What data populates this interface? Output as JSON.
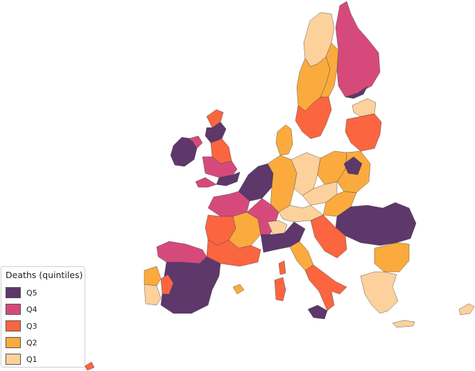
{
  "colors": {
    "Q5": "#5e376b",
    "Q4": "#d64a7b",
    "Q3": "#fb6540",
    "Q2": "#fbab3d",
    "Q1": "#fdd19c"
  },
  "legend": {
    "title": "Deaths (quintiles)",
    "items": [
      {
        "key": "Q5",
        "label": "Q5"
      },
      {
        "key": "Q4",
        "label": "Q4"
      },
      {
        "key": "Q3",
        "label": "Q3"
      },
      {
        "key": "Q2",
        "label": "Q2"
      },
      {
        "key": "Q1",
        "label": "Q1"
      }
    ]
  },
  "regions": [
    {
      "id": "norway-north",
      "q": "Q1"
    },
    {
      "id": "norway-south",
      "q": "Q2"
    },
    {
      "id": "sweden-north",
      "q": "Q2"
    },
    {
      "id": "sweden-south",
      "q": "Q3"
    },
    {
      "id": "finland",
      "q": "Q4"
    },
    {
      "id": "finland-south",
      "q": "Q5"
    },
    {
      "id": "estonia",
      "q": "Q1"
    },
    {
      "id": "latvia-lithuania",
      "q": "Q3"
    },
    {
      "id": "denmark",
      "q": "Q2"
    },
    {
      "id": "ireland",
      "q": "Q5"
    },
    {
      "id": "northern-ireland",
      "q": "Q4"
    },
    {
      "id": "scotland-north",
      "q": "Q3"
    },
    {
      "id": "scotland",
      "q": "Q5"
    },
    {
      "id": "england-north",
      "q": "Q3"
    },
    {
      "id": "england-mid",
      "q": "Q4"
    },
    {
      "id": "england-south",
      "q": "Q5"
    },
    {
      "id": "wales-sw",
      "q": "Q4"
    },
    {
      "id": "benelux",
      "q": "Q5"
    },
    {
      "id": "germany-west",
      "q": "Q2"
    },
    {
      "id": "germany-east",
      "q": "Q1"
    },
    {
      "id": "poland-west",
      "q": "Q2"
    },
    {
      "id": "poland-east",
      "q": "Q2"
    },
    {
      "id": "poland-southeast",
      "q": "Q5"
    },
    {
      "id": "czechia",
      "q": "Q1"
    },
    {
      "id": "slovakia-hungary",
      "q": "Q2"
    },
    {
      "id": "austria",
      "q": "Q1"
    },
    {
      "id": "romania",
      "q": "Q5"
    },
    {
      "id": "bulgaria",
      "q": "Q2"
    },
    {
      "id": "greece",
      "q": "Q1"
    },
    {
      "id": "croatia",
      "q": "Q3"
    },
    {
      "id": "france-north",
      "q": "Q4"
    },
    {
      "id": "france-west",
      "q": "Q3"
    },
    {
      "id": "france-center",
      "q": "Q2"
    },
    {
      "id": "france-east",
      "q": "Q4"
    },
    {
      "id": "france-south",
      "q": "Q3"
    },
    {
      "id": "switzerland",
      "q": "Q1"
    },
    {
      "id": "italy-north",
      "q": "Q5"
    },
    {
      "id": "italy-center",
      "q": "Q2"
    },
    {
      "id": "italy-south",
      "q": "Q3"
    },
    {
      "id": "sicily",
      "q": "Q5"
    },
    {
      "id": "sardinia",
      "q": "Q3"
    },
    {
      "id": "corsica",
      "q": "Q3"
    },
    {
      "id": "spain-north",
      "q": "Q4"
    },
    {
      "id": "spain-center",
      "q": "Q5"
    },
    {
      "id": "spain-east",
      "q": "Q5"
    },
    {
      "id": "spain-south",
      "q": "Q5"
    },
    {
      "id": "spain-southwest",
      "q": "Q3"
    },
    {
      "id": "portugal-north",
      "q": "Q2"
    },
    {
      "id": "portugal-south",
      "q": "Q1"
    },
    {
      "id": "crete",
      "q": "Q1"
    },
    {
      "id": "cyprus",
      "q": "Q1"
    },
    {
      "id": "balearic",
      "q": "Q2"
    },
    {
      "id": "canary",
      "q": "Q3"
    }
  ]
}
